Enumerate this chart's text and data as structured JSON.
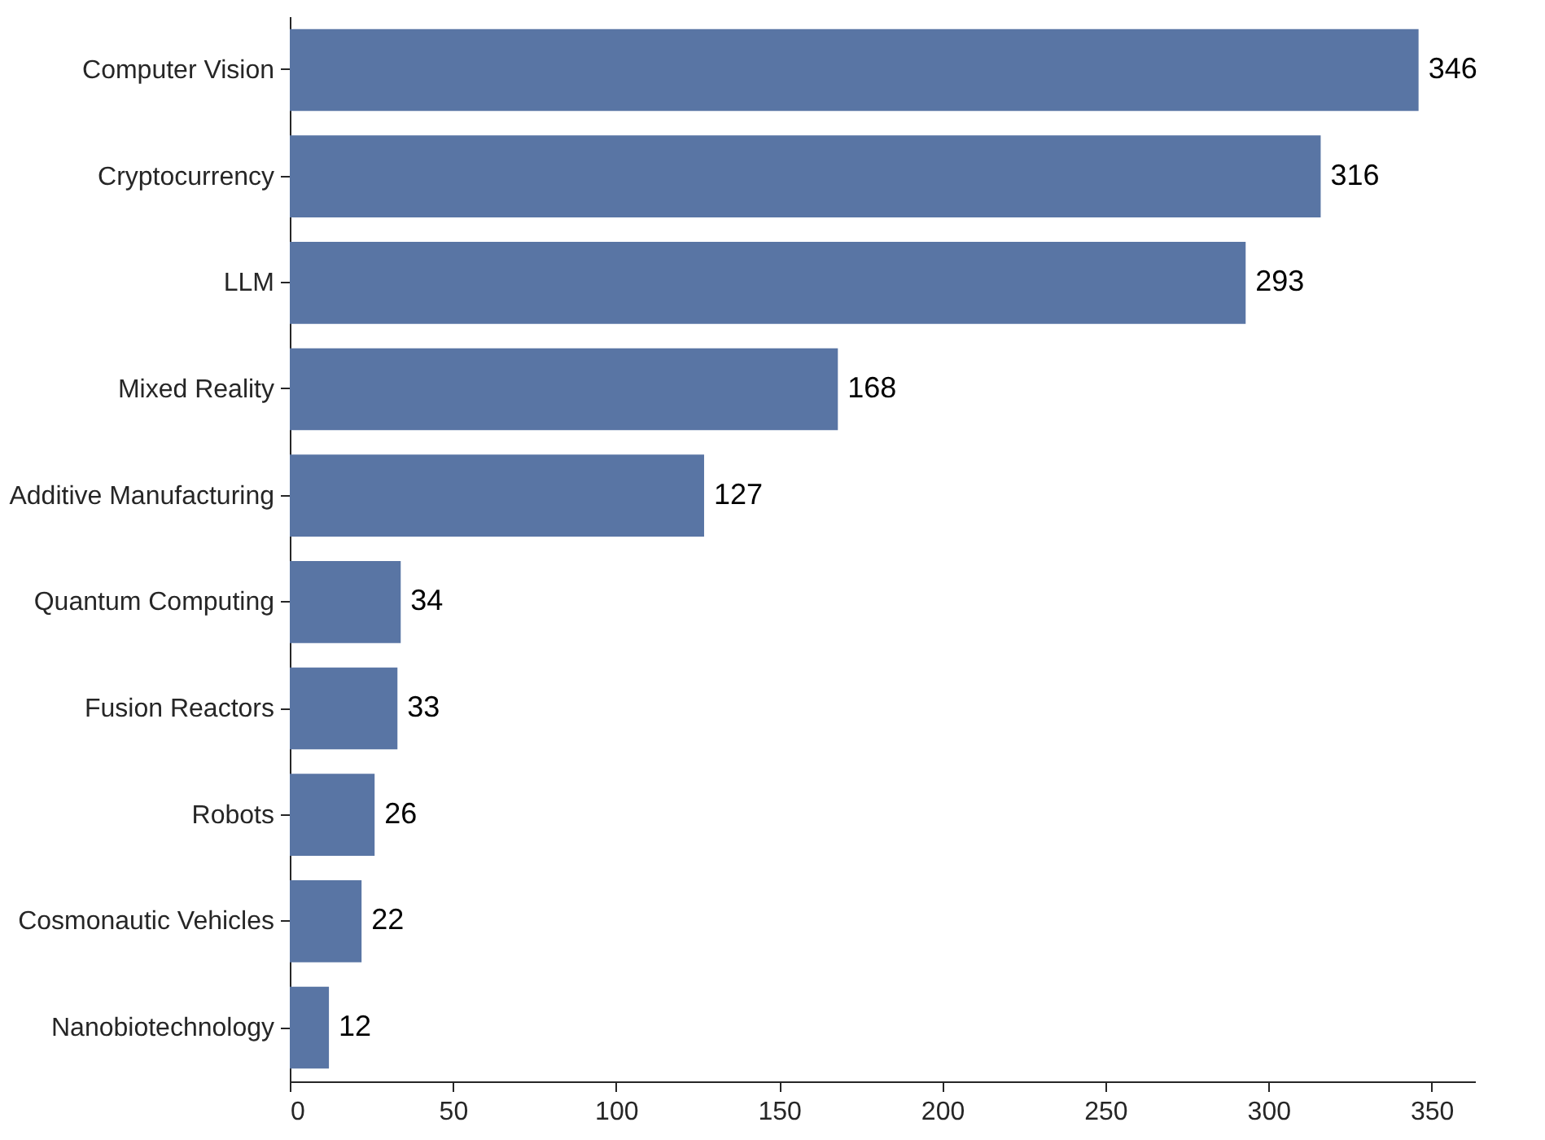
{
  "chart_data": {
    "type": "bar",
    "orientation": "horizontal",
    "categories": [
      "Computer Vision",
      "Cryptocurrency",
      "LLM",
      "Mixed Reality",
      "Additive Manufacturing",
      "Quantum Computing",
      "Fusion Reactors",
      "Robots",
      "Cosmonautic Vehicles",
      "Nanobiotechnology"
    ],
    "values": [
      346,
      316,
      293,
      168,
      127,
      34,
      33,
      26,
      22,
      12
    ],
    "color": "#5975a4",
    "xlim": [
      0,
      363.3
    ],
    "xticks": [
      0,
      50,
      100,
      150,
      200,
      250,
      300,
      350
    ],
    "data_labels": true,
    "grid": false
  }
}
